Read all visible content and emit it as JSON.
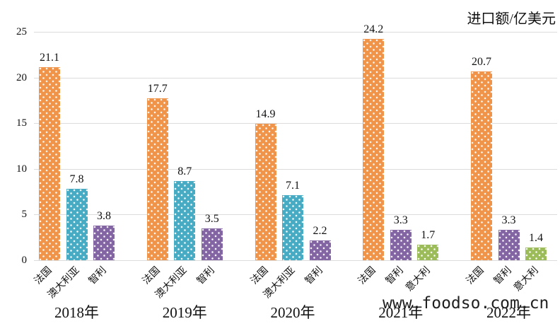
{
  "chart_title": "进口额/亿美元",
  "watermark": "www.foodso.com.cn",
  "chart_data": {
    "type": "bar",
    "title": "进口额/亿美元",
    "ylabel": "进口额/亿美元",
    "xlabel": "",
    "ylim": [
      0,
      25
    ],
    "yticks": [
      0,
      5,
      10,
      15,
      20,
      25
    ],
    "grid": true,
    "legend_position": "none",
    "series_colors": {
      "法国": "#F0944A",
      "澳大利亚": "#48ABC4",
      "智利": "#8365A4",
      "意大利": "#9CBB59"
    },
    "groups": [
      {
        "year": "2018年",
        "bars": [
          {
            "country": "法国",
            "value": 21.1
          },
          {
            "country": "澳大利亚",
            "value": 7.8
          },
          {
            "country": "智利",
            "value": 3.8
          }
        ]
      },
      {
        "year": "2019年",
        "bars": [
          {
            "country": "法国",
            "value": 17.7
          },
          {
            "country": "澳大利亚",
            "value": 8.7
          },
          {
            "country": "智利",
            "value": 3.5
          }
        ]
      },
      {
        "year": "2020年",
        "bars": [
          {
            "country": "法国",
            "value": 14.9
          },
          {
            "country": "澳大利亚",
            "value": 7.1
          },
          {
            "country": "智利",
            "value": 2.2
          }
        ]
      },
      {
        "year": "2021年",
        "bars": [
          {
            "country": "法国",
            "value": 24.2
          },
          {
            "country": "智利",
            "value": 3.3
          },
          {
            "country": "意大利",
            "value": 1.7
          }
        ]
      },
      {
        "year": "2022年",
        "bars": [
          {
            "country": "法国",
            "value": 20.7
          },
          {
            "country": "智利",
            "value": 3.3
          },
          {
            "country": "意大利",
            "value": 1.4
          }
        ]
      }
    ]
  }
}
